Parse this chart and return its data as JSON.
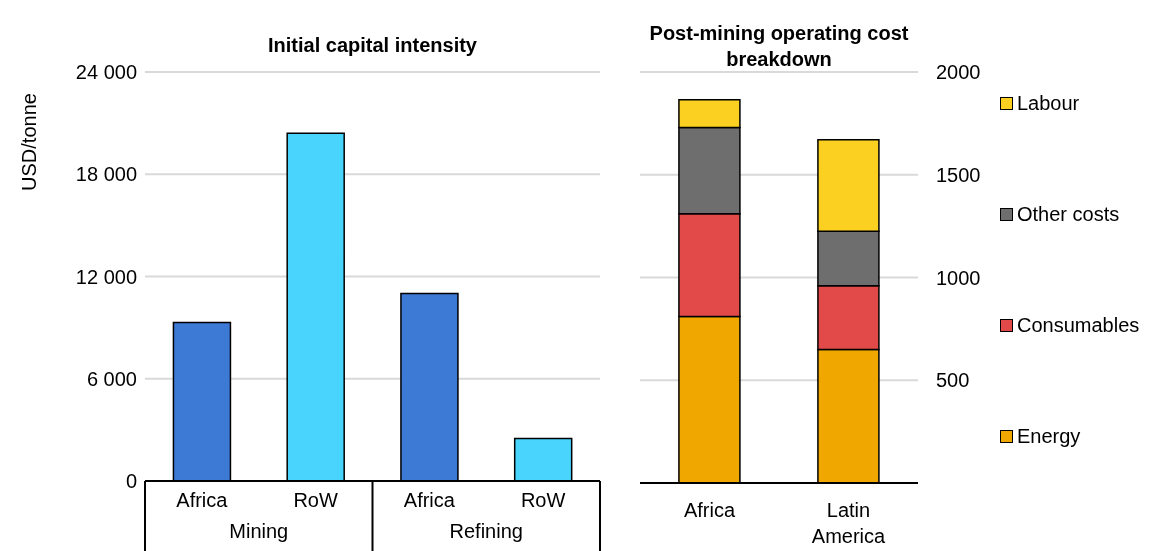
{
  "chart_data": [
    {
      "type": "bar",
      "title": "Initial capital intensity",
      "ylabel": "USD/tonne",
      "categories": [
        "Africa",
        "RoW",
        "Africa",
        "RoW"
      ],
      "values": [
        9300,
        20400,
        11000,
        2500
      ],
      "colors": [
        "#3c7ad6",
        "#48d4fc",
        "#3c7ad6",
        "#48d4fc"
      ],
      "ylim": [
        0,
        24000
      ],
      "yticks": [
        0,
        {
          "value": 6000,
          "label": "6 000"
        },
        {
          "value": 12000,
          "label": "12 000"
        },
        {
          "value": 18000,
          "label": "18 000"
        },
        {
          "value": 24000,
          "label": "24 000"
        }
      ],
      "grid": "y",
      "annotations": [
        "Mining",
        "Refining"
      ]
    },
    {
      "type": "bar",
      "stacked": true,
      "title": "Post-mining operating cost breakdown",
      "categories": [
        "Africa",
        "Latin America"
      ],
      "series": [
        {
          "name": "Energy",
          "color": "#f0a800",
          "values": [
            810,
            650
          ]
        },
        {
          "name": "Consumables",
          "color": "#e24a4a",
          "values": [
            500,
            310
          ]
        },
        {
          "name": "Other costs",
          "color": "#6e6e6e",
          "values": [
            420,
            265
          ]
        },
        {
          "name": "Labour",
          "color": "#fcd020",
          "values": [
            135,
            445
          ]
        }
      ],
      "ylim": [
        0,
        2000
      ],
      "yticks": [
        500,
        1000,
        1500,
        2000
      ],
      "grid": "y",
      "legend": "right"
    }
  ]
}
